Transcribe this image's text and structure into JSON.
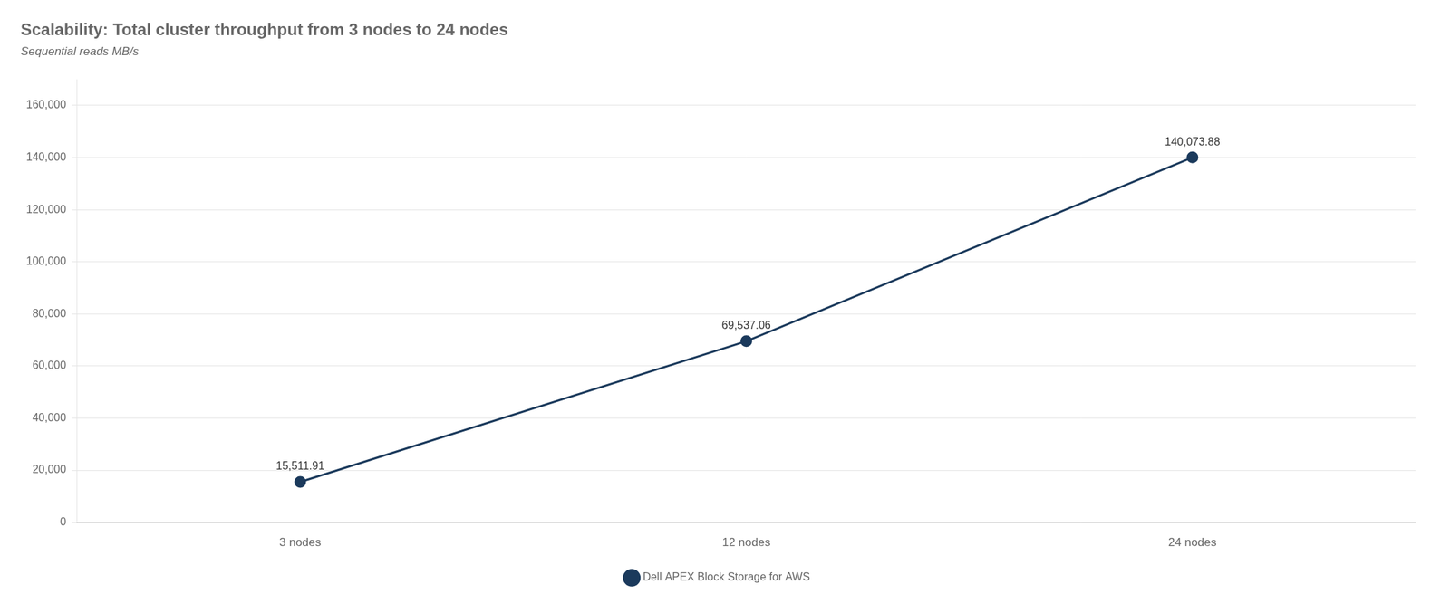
{
  "chart_data": {
    "type": "line",
    "title": "Scalability: Total cluster throughput from 3 nodes to 24 nodes",
    "subtitle": "Sequential reads MB/s",
    "categories": [
      "3 nodes",
      "12 nodes",
      "24 nodes"
    ],
    "series": [
      {
        "name": "Dell APEX Block Storage for AWS",
        "color": "#1b3a5c",
        "marker": "circle",
        "values": [
          15511.91,
          69537.06,
          140073.88
        ],
        "value_labels": [
          "15,511.91",
          "69,537.06",
          "140,073.88"
        ]
      }
    ],
    "data_labels": true,
    "ylim": [
      0,
      170000
    ],
    "yticks": [
      0,
      {
        "value": 20000,
        "label": "20,000"
      },
      {
        "value": 40000,
        "label": "40,000"
      },
      {
        "value": 60000,
        "label": "60,000"
      },
      {
        "value": 80000,
        "label": "80,000"
      },
      {
        "value": 100000,
        "label": "100,000"
      },
      {
        "value": 120000,
        "label": "120,000"
      },
      {
        "value": 140000,
        "label": "140,000"
      },
      {
        "value": 160000,
        "label": "160,000"
      }
    ],
    "grid": true,
    "legend": "bottom"
  }
}
